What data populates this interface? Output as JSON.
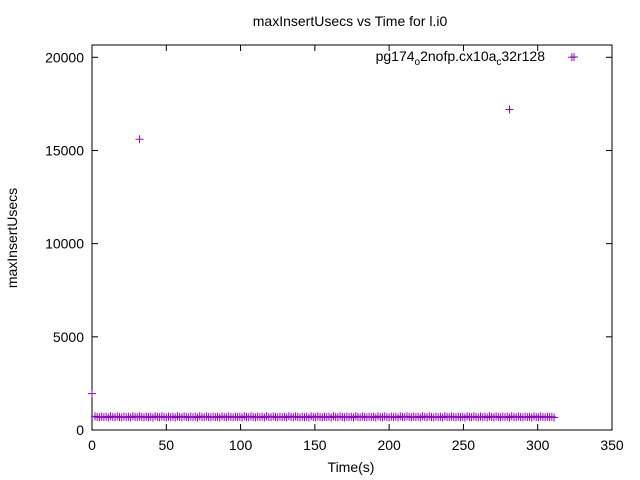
{
  "chart_data": {
    "type": "scatter",
    "title": "maxInsertUsecs vs Time for l.i0",
    "xlabel": "Time(s)",
    "ylabel": "maxInsertUsecs",
    "xlim": [
      0,
      350
    ],
    "ylim": [
      0,
      20660
    ],
    "xticks": [
      0,
      50,
      100,
      150,
      200,
      250,
      300,
      350
    ],
    "yticks": [
      0,
      5000,
      10000,
      15000,
      20000
    ],
    "legend_placement": "top-right",
    "grid": false,
    "series": [
      {
        "name_parts": {
          "part1": "pg174",
          "sub1": "o",
          "part2": "2nofp.cx10a",
          "sub2": "c",
          "part3": "32r128"
        },
        "color": "#9400d3",
        "marker": "plus",
        "points": [
          [
            0,
            1950
          ],
          [
            32,
            15600
          ],
          [
            281,
            17200
          ],
          [
            323,
            20000
          ]
        ],
        "baseline_band": {
          "x_start": 2,
          "x_end": 311,
          "step": 1.5,
          "y_values": [
            730,
            700,
            680,
            720,
            690,
            710,
            670,
            740,
            700,
            685
          ]
        }
      }
    ]
  }
}
